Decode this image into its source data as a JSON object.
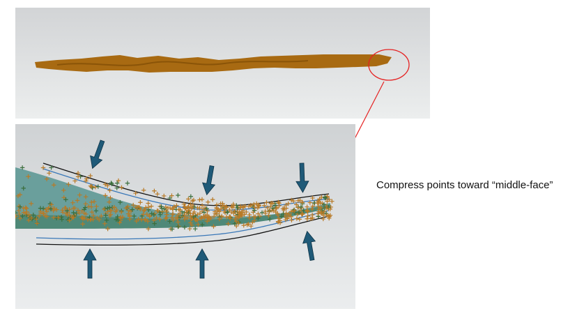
{
  "caption": "Compress points toward “middle-face”",
  "colors": {
    "fiber": "#a86a12",
    "points": "#b87a26",
    "surface": "#6a9f9c",
    "surface_dark": "#2f6e4e",
    "offset_line_outer": "#111111",
    "offset_line_inner": "#3a78b8",
    "arrow": "#1f5a78",
    "highlight": "#e52222"
  },
  "icons": {
    "compress_arrow": "arrow-icon",
    "highlight_circle": "circle-callout"
  }
}
